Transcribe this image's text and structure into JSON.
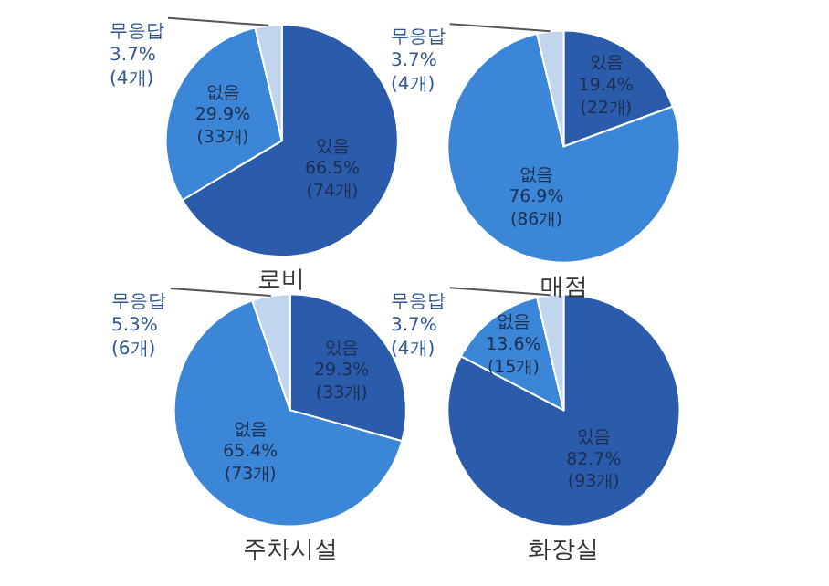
{
  "chart_data": [
    {
      "type": "pie",
      "title": "로비",
      "categories": [
        "있음",
        "없음",
        "무응답"
      ],
      "values": [
        66.5,
        29.9,
        3.7
      ],
      "colors": [
        "#2b5bab",
        "#3b86d6",
        "#c2d5ef"
      ],
      "value_labels": [
        "66.5%\n(74개)",
        "29.9%\n(33개)",
        "3.7%\n(4개)"
      ]
    },
    {
      "type": "pie",
      "title": "매점",
      "categories": [
        "있음",
        "없음",
        "무응답"
      ],
      "values": [
        19.4,
        76.9,
        3.7
      ],
      "colors": [
        "#2b5bab",
        "#3b86d6",
        "#c2d5ef"
      ],
      "value_labels": [
        "19.4%\n(22개)",
        "76.9%\n(86개)",
        "3.7%\n(4개)"
      ]
    },
    {
      "type": "pie",
      "title": "주차시설",
      "categories": [
        "있음",
        "없음",
        "무응답"
      ],
      "values": [
        29.3,
        65.4,
        5.3
      ],
      "colors": [
        "#2b5bab",
        "#3b86d6",
        "#c2d5ef"
      ],
      "value_labels": [
        "29.3%\n(33개)",
        "65.4%\n(73개)",
        "5.3%\n(6개)"
      ]
    },
    {
      "type": "pie",
      "title": "화장실",
      "categories": [
        "있음",
        "없음",
        "무응답"
      ],
      "values": [
        82.7,
        13.6,
        3.7
      ],
      "colors": [
        "#2b5bab",
        "#3b86d6",
        "#c2d5ef"
      ],
      "value_labels": [
        "82.7%\n(93개)",
        "13.6%\n(15개)",
        "3.7%\n(4개)"
      ]
    }
  ]
}
